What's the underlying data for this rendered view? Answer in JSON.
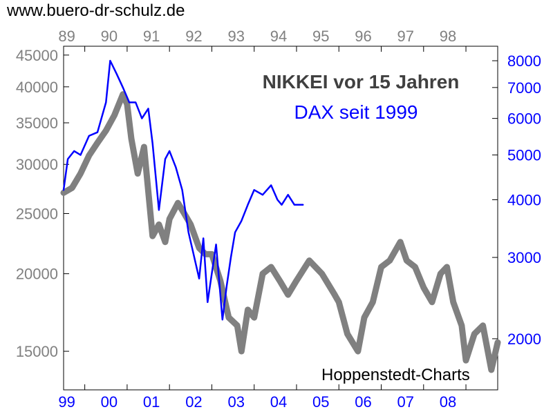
{
  "source_label": "www.buero-dr-schulz.de",
  "credit_label": "Hoppenstedt-Charts",
  "chart_data": {
    "type": "line",
    "title": "NIKKEI vor 15 Jahren",
    "subtitle": "DAX seit 1999",
    "grid": false,
    "colors": {
      "nikkei": "#808080",
      "dax": "#0000ff",
      "left_axis": "#808080",
      "right_axis": "#0000ff",
      "title": "#404040"
    },
    "top_x_ticks": [
      "89",
      "90",
      "91",
      "92",
      "93",
      "94",
      "95",
      "96",
      "97",
      "98"
    ],
    "bottom_x_ticks": [
      "99",
      "00",
      "01",
      "02",
      "03",
      "04",
      "05",
      "06",
      "07",
      "08"
    ],
    "left_y_ticks": [
      15000,
      20000,
      25000,
      30000,
      35000,
      40000,
      45000
    ],
    "right_y_ticks": [
      2000,
      3000,
      4000,
      5000,
      6000,
      7000,
      8000
    ],
    "left_ylim": [
      13000,
      46500
    ],
    "right_ylim": [
      1550,
      8600
    ],
    "log_scale": true,
    "series": [
      {
        "name": "NIKKEI",
        "axis": "left",
        "x": [
          1988.5,
          1988.7,
          1988.9,
          1989.1,
          1989.3,
          1989.5,
          1989.7,
          1989.9,
          1990.0,
          1990.1,
          1990.25,
          1990.4,
          1990.6,
          1990.75,
          1990.9,
          1991.0,
          1991.2,
          1991.35,
          1991.5,
          1991.7,
          1991.85,
          1992.0,
          1992.2,
          1992.4,
          1992.6,
          1992.7,
          1992.85,
          1993.0,
          1993.2,
          1993.4,
          1993.6,
          1993.8,
          1994.0,
          1994.3,
          1994.6,
          1994.9,
          1995.0,
          1995.2,
          1995.45,
          1995.6,
          1995.8,
          1996.0,
          1996.2,
          1996.45,
          1996.6,
          1996.8,
          1997.0,
          1997.2,
          1997.4,
          1997.55,
          1997.7,
          1997.9,
          1998.0,
          1998.2,
          1998.4,
          1998.6,
          1998.75
        ],
        "values": [
          27000,
          27500,
          29000,
          31000,
          32500,
          34000,
          36000,
          38900,
          37500,
          33000,
          29000,
          32000,
          23000,
          24000,
          22500,
          24500,
          26000,
          25000,
          24000,
          22000,
          21500,
          21500,
          19500,
          17000,
          16500,
          15000,
          17500,
          17000,
          20000,
          20500,
          19500,
          18500,
          19500,
          21000,
          20000,
          18500,
          18000,
          16000,
          15000,
          17000,
          18000,
          20500,
          21000,
          22500,
          21000,
          20500,
          19000,
          18000,
          20000,
          20500,
          18000,
          16500,
          14500,
          16000,
          16500,
          14000,
          15500
        ]
      },
      {
        "name": "DAX",
        "axis": "right",
        "x": [
          1988.5,
          1988.6,
          1988.75,
          1988.9,
          1989.1,
          1989.3,
          1989.5,
          1989.6,
          1989.75,
          1989.9,
          1990.05,
          1990.2,
          1990.35,
          1990.5,
          1990.6,
          1990.75,
          1990.9,
          1991.0,
          1991.15,
          1991.3,
          1991.45,
          1991.55,
          1991.7,
          1991.8,
          1991.9,
          1992.1,
          1992.25,
          1992.35,
          1992.45,
          1992.55,
          1992.7,
          1992.85,
          1993.0,
          1993.2,
          1993.4,
          1993.55,
          1993.65,
          1993.8,
          1993.95,
          1994.15
        ],
        "values": [
          4200,
          4900,
          5100,
          5000,
          5500,
          5600,
          6500,
          8000,
          7500,
          7000,
          6500,
          6500,
          6000,
          6300,
          5300,
          3800,
          4900,
          5100,
          4700,
          4200,
          3400,
          3100,
          2700,
          3300,
          2400,
          3200,
          2200,
          2600,
          3000,
          3400,
          3600,
          3900,
          4200,
          4100,
          4300,
          4000,
          3900,
          4100,
          3900,
          3900
        ]
      }
    ]
  }
}
